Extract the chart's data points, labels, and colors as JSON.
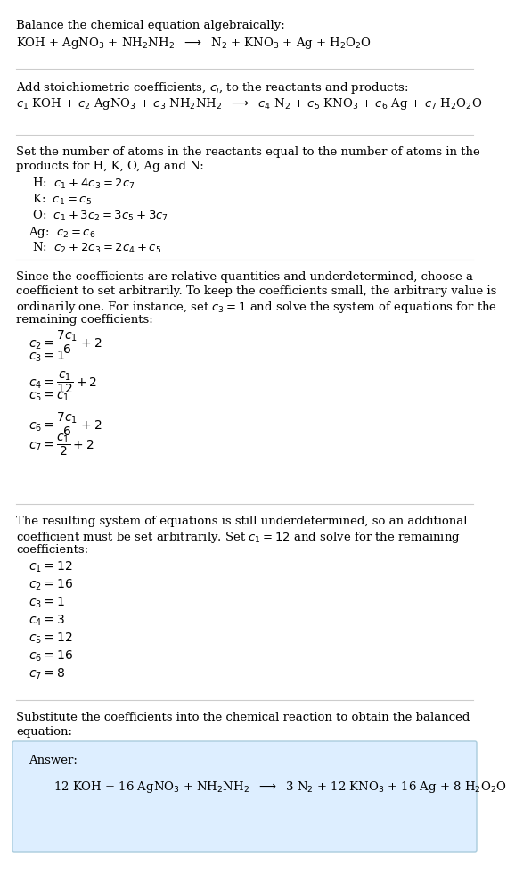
{
  "title": "Balance the chemical equation algebraically:",
  "eq1": "KOH + AgNO$_3$ + NH$_2$NH$_2$  $\\longrightarrow$  N$_2$ + KNO$_3$ + Ag + H$_2$O$_2$O",
  "section2_title": "Add stoichiometric coefficients, $c_i$, to the reactants and products:",
  "eq2": "$c_1$ KOH + $c_2$ AgNO$_3$ + $c_3$ NH$_2$NH$_2$  $\\longrightarrow$  $c_4$ N$_2$ + $c_5$ KNO$_3$ + $c_6$ Ag + $c_7$ H$_2$O$_2$O",
  "section3_title_line1": "Set the number of atoms in the reactants equal to the number of atoms in the",
  "section3_title_line2": "products for H, K, O, Ag and N:",
  "atom_eqs": [
    " H:  $c_1 + 4 c_3 = 2 c_7$",
    " K:  $c_1 = c_5$",
    " O:  $c_1 + 3 c_2 = 3 c_5 + 3 c_7$",
    "Ag:  $c_2 = c_6$",
    " N:  $c_2 + 2 c_3 = 2 c_4 + c_5$"
  ],
  "section4_line1": "Since the coefficients are relative quantities and underdetermined, choose a",
  "section4_line2": "coefficient to set arbitrarily. To keep the coefficients small, the arbitrary value is",
  "section4_line3": "ordinarily one. For instance, set $c_3 = 1$ and solve the system of equations for the",
  "section4_line4": "remaining coefficients:",
  "intermediate_eqs": [
    "$c_2 = \\dfrac{7 c_1}{6} + 2$",
    "$c_3 = 1$",
    "$c_4 = \\dfrac{c_1}{12} + 2$",
    "$c_5 = c_1$",
    "$c_6 = \\dfrac{7 c_1}{6} + 2$",
    "$c_7 = \\dfrac{c_1}{2} + 2$"
  ],
  "section5_line1": "The resulting system of equations is still underdetermined, so an additional",
  "section5_line2": "coefficient must be set arbitrarily. Set $c_1 = 12$ and solve for the remaining",
  "section5_line3": "coefficients:",
  "final_coeffs": [
    "$c_1 = 12$",
    "$c_2 = 16$",
    "$c_3 = 1$",
    "$c_4 = 3$",
    "$c_5 = 12$",
    "$c_6 = 16$",
    "$c_7 = 8$"
  ],
  "section6_line1": "Substitute the coefficients into the chemical reaction to obtain the balanced",
  "section6_line2": "equation:",
  "answer_label": "Answer:",
  "answer_eq": "12 KOH + 16 AgNO$_3$ + NH$_2$NH$_2$  $\\longrightarrow$  3 N$_2$ + 12 KNO$_3$ + 16 Ag + 8 H$_2$O$_2$O",
  "bg_color": "#ffffff",
  "answer_box_color": "#ddeeff",
  "answer_box_edge": "#aaccdd",
  "text_color": "#000000",
  "line_color": "#cccccc",
  "font_size": 9.5
}
